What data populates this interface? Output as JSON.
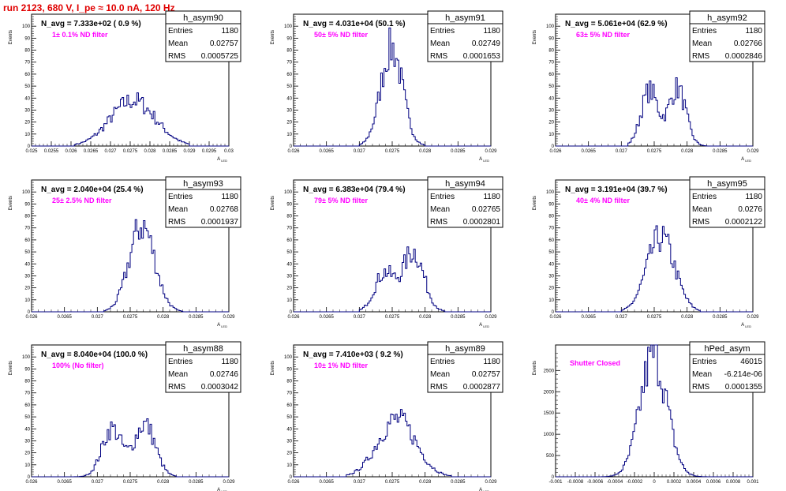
{
  "title": "run 2123,   680 V, I_pe ≈ 10.0 nA, 120 Hz",
  "chart_data": [
    {
      "type": "histogram",
      "name": "h_asym90",
      "navg": "N_avg = 7.333e+02 ( 0.9 %)",
      "annotation": "1± 0.1% ND filter",
      "ylabel": "Events",
      "xlabel": "A_LED",
      "xlim": [
        0.025,
        0.03
      ],
      "ylim": [
        0,
        110
      ],
      "xticks": [
        "0.025",
        "0.0255",
        "0.026",
        "0.0265",
        "0.027",
        "0.0275",
        "0.028",
        "0.0285",
        "0.029",
        "0.0295",
        "0.03"
      ],
      "xtick_values": [
        0.025,
        0.0255,
        0.026,
        0.0265,
        0.027,
        0.0275,
        0.028,
        0.0285,
        0.029,
        0.0295,
        0.03
      ],
      "yticks": [
        0,
        10,
        20,
        30,
        40,
        50,
        60,
        70,
        80,
        90,
        100
      ],
      "stats": [
        [
          "Entries",
          "1180"
        ],
        [
          "Mean",
          "0.02757"
        ],
        [
          "RMS",
          "0.0005725"
        ]
      ],
      "shape": {
        "components": [
          [
            0.02757,
            0.00057,
            38
          ]
        ],
        "range": [
          0.0261,
          0.029
        ],
        "bins": 120
      }
    },
    {
      "type": "histogram",
      "name": "h_asym91",
      "navg": "N_avg = 4.031e+04 (50.1 %)",
      "annotation": "50± 5% ND filter",
      "ylabel": "Events",
      "xlabel": "A_LED",
      "xlim": [
        0.026,
        0.029
      ],
      "ylim": [
        0,
        110
      ],
      "xticks": [
        "0.026",
        "0.0265",
        "0.027",
        "0.0275",
        "0.028",
        "0.0285",
        "0.029"
      ],
      "xtick_values": [
        0.026,
        0.0265,
        0.027,
        0.0275,
        0.028,
        0.0285,
        0.029
      ],
      "yticks": [
        0,
        10,
        20,
        30,
        40,
        50,
        60,
        70,
        80,
        90,
        100
      ],
      "stats": [
        [
          "Entries",
          "1180"
        ],
        [
          "Mean",
          "0.02749"
        ],
        [
          "RMS",
          "0.0001653"
        ]
      ],
      "shape": {
        "components": [
          [
            0.02749,
            0.000165,
            82
          ]
        ],
        "range": [
          0.027,
          0.028
        ],
        "bins": 120
      }
    },
    {
      "type": "histogram",
      "name": "h_asym92",
      "navg": "N_avg = 5.061e+04 (62.9 %)",
      "annotation": "63± 5% ND filter",
      "ylabel": "Events",
      "xlabel": "A_LED",
      "xlim": [
        0.026,
        0.029
      ],
      "ylim": [
        0,
        110
      ],
      "xticks": [
        "0.026",
        "0.0265",
        "0.027",
        "0.0275",
        "0.028",
        "0.0285",
        "0.029"
      ],
      "xtick_values": [
        0.026,
        0.0265,
        0.027,
        0.0275,
        0.028,
        0.0285,
        0.029
      ],
      "yticks": [
        0,
        10,
        20,
        30,
        40,
        50,
        60,
        70,
        80,
        90,
        100
      ],
      "stats": [
        [
          "Entries",
          "1180"
        ],
        [
          "Mean",
          "0.02766"
        ],
        [
          "RMS",
          "0.0002846"
        ]
      ],
      "shape": {
        "components": [
          [
            0.02743,
            0.00013,
            46
          ],
          [
            0.02785,
            0.00013,
            48
          ]
        ],
        "range": [
          0.0271,
          0.0283
        ],
        "bins": 120
      }
    },
    {
      "type": "histogram",
      "name": "h_asym93",
      "navg": "N_avg = 2.040e+04 (25.4 %)",
      "annotation": "25± 2.5% ND filter",
      "ylabel": "Events",
      "xlabel": "A_LED",
      "xlim": [
        0.026,
        0.029
      ],
      "ylim": [
        0,
        110
      ],
      "xticks": [
        "0.026",
        "0.0265",
        "0.027",
        "0.0275",
        "0.028",
        "0.0285",
        "0.029"
      ],
      "xtick_values": [
        0.026,
        0.0265,
        0.027,
        0.0275,
        0.028,
        0.0285,
        0.029
      ],
      "yticks": [
        0,
        10,
        20,
        30,
        40,
        50,
        60,
        70,
        80,
        90,
        100
      ],
      "stats": [
        [
          "Entries",
          "1180"
        ],
        [
          "Mean",
          "0.02768"
        ],
        [
          "RMS",
          "0.0001937"
        ]
      ],
      "shape": {
        "components": [
          [
            0.02768,
            0.000194,
            72
          ]
        ],
        "range": [
          0.0271,
          0.0283
        ],
        "bins": 120
      }
    },
    {
      "type": "histogram",
      "name": "h_asym94",
      "navg": "N_avg = 6.383e+04 (79.4 %)",
      "annotation": "79± 5% ND filter",
      "ylabel": "Events",
      "xlabel": "A_LED",
      "xlim": [
        0.026,
        0.029
      ],
      "ylim": [
        0,
        110
      ],
      "xticks": [
        "0.026",
        "0.0265",
        "0.027",
        "0.0275",
        "0.028",
        "0.0285",
        "0.029"
      ],
      "xtick_values": [
        0.026,
        0.0265,
        0.027,
        0.0275,
        0.028,
        0.0285,
        0.029
      ],
      "yticks": [
        0,
        10,
        20,
        30,
        40,
        50,
        60,
        70,
        80,
        90,
        100
      ],
      "stats": [
        [
          "Entries",
          "1180"
        ],
        [
          "Mean",
          "0.02765"
        ],
        [
          "RMS",
          "0.0002801"
        ]
      ],
      "shape": {
        "components": [
          [
            0.02738,
            0.00015,
            32
          ],
          [
            0.02782,
            0.00016,
            50
          ]
        ],
        "range": [
          0.027,
          0.0283
        ],
        "bins": 120
      }
    },
    {
      "type": "histogram",
      "name": "h_asym95",
      "navg": "N_avg = 3.191e+04 (39.7 %)",
      "annotation": "40± 4% ND filter",
      "ylabel": "Events",
      "xlabel": "A_LED",
      "xlim": [
        0.026,
        0.029
      ],
      "ylim": [
        0,
        110
      ],
      "xticks": [
        "0.026",
        "0.0265",
        "0.027",
        "0.0275",
        "0.028",
        "0.0285",
        "0.029"
      ],
      "xtick_values": [
        0.026,
        0.0265,
        0.027,
        0.0275,
        0.028,
        0.0285,
        0.029
      ],
      "yticks": [
        0,
        10,
        20,
        30,
        40,
        50,
        60,
        70,
        80,
        90,
        100
      ],
      "stats": [
        [
          "Entries",
          "1180"
        ],
        [
          "Mean",
          "0.0276"
        ],
        [
          "RMS",
          "0.0002122"
        ]
      ],
      "shape": {
        "components": [
          [
            0.0276,
            0.000212,
            62
          ]
        ],
        "range": [
          0.027,
          0.0282
        ],
        "bins": 120
      }
    },
    {
      "type": "histogram",
      "name": "h_asym88",
      "navg": "N_avg = 8.040e+04 (100.0 %)",
      "annotation": "100% (No filter)",
      "ylabel": "Events",
      "xlabel": "A_LED",
      "xlim": [
        0.026,
        0.029
      ],
      "ylim": [
        0,
        110
      ],
      "xticks": [
        "0.026",
        "0.0265",
        "0.027",
        "0.0275",
        "0.028",
        "0.0285",
        "0.029"
      ],
      "xtick_values": [
        0.026,
        0.0265,
        0.027,
        0.0275,
        0.028,
        0.0285,
        0.029
      ],
      "yticks": [
        0,
        10,
        20,
        30,
        40,
        50,
        60,
        70,
        80,
        90,
        100
      ],
      "stats": [
        [
          "Entries",
          "1180"
        ],
        [
          "Mean",
          "0.02746"
        ],
        [
          "RMS",
          "0.0003042"
        ]
      ],
      "shape": {
        "components": [
          [
            0.02722,
            0.00015,
            40
          ],
          [
            0.02772,
            0.00016,
            44
          ]
        ],
        "range": [
          0.0266,
          0.0282
        ],
        "bins": 120
      }
    },
    {
      "type": "histogram",
      "name": "h_asym89",
      "navg": "N_avg = 7.410e+03 ( 9.2 %)",
      "annotation": "10± 1% ND filter",
      "ylabel": "Events",
      "xlabel": "A_LED",
      "xlim": [
        0.026,
        0.029
      ],
      "ylim": [
        0,
        110
      ],
      "xticks": [
        "0.026",
        "0.0265",
        "0.027",
        "0.0275",
        "0.028",
        "0.0285",
        "0.029"
      ],
      "xtick_values": [
        0.026,
        0.0265,
        0.027,
        0.0275,
        0.028,
        0.0285,
        0.029
      ],
      "yticks": [
        0,
        10,
        20,
        30,
        40,
        50,
        60,
        70,
        80,
        90,
        100
      ],
      "stats": [
        [
          "Entries",
          "1180"
        ],
        [
          "Mean",
          "0.02757"
        ],
        [
          "RMS",
          "0.0002877"
        ]
      ],
      "shape": {
        "components": [
          [
            0.02757,
            0.000288,
            48
          ]
        ],
        "range": [
          0.0268,
          0.0284
        ],
        "bins": 120
      }
    },
    {
      "type": "histogram",
      "name": "hPed_asym",
      "navg": "",
      "annotation": "Shutter Closed",
      "ylabel": "Events",
      "xlabel": "",
      "xlim": [
        -0.001,
        0.001
      ],
      "ylim": [
        0,
        3100
      ],
      "xticks": [
        "-0.001",
        "-0.0008",
        "-0.0006",
        "-0.0004",
        "-0.0002",
        "0",
        "0.0002",
        "0.0004",
        "0.0006",
        "0.0008",
        "0.001"
      ],
      "xtick_values": [
        -0.001,
        -0.0008,
        -0.0006,
        -0.0004,
        -0.0002,
        0,
        0.0002,
        0.0004,
        0.0006,
        0.0008,
        0.001
      ],
      "yticks": [
        0,
        500,
        1000,
        1500,
        2000,
        2500
      ],
      "stats": [
        [
          "Entries",
          "46015"
        ],
        [
          "Mean",
          "-6.214e-06"
        ],
        [
          "RMS",
          "0.0001355"
        ]
      ],
      "shape": {
        "components": [
          [
            -6.2e-06,
            0.0001355,
            2850
          ]
        ],
        "range": [
          -0.0006,
          0.0006
        ],
        "bins": 120
      }
    }
  ]
}
